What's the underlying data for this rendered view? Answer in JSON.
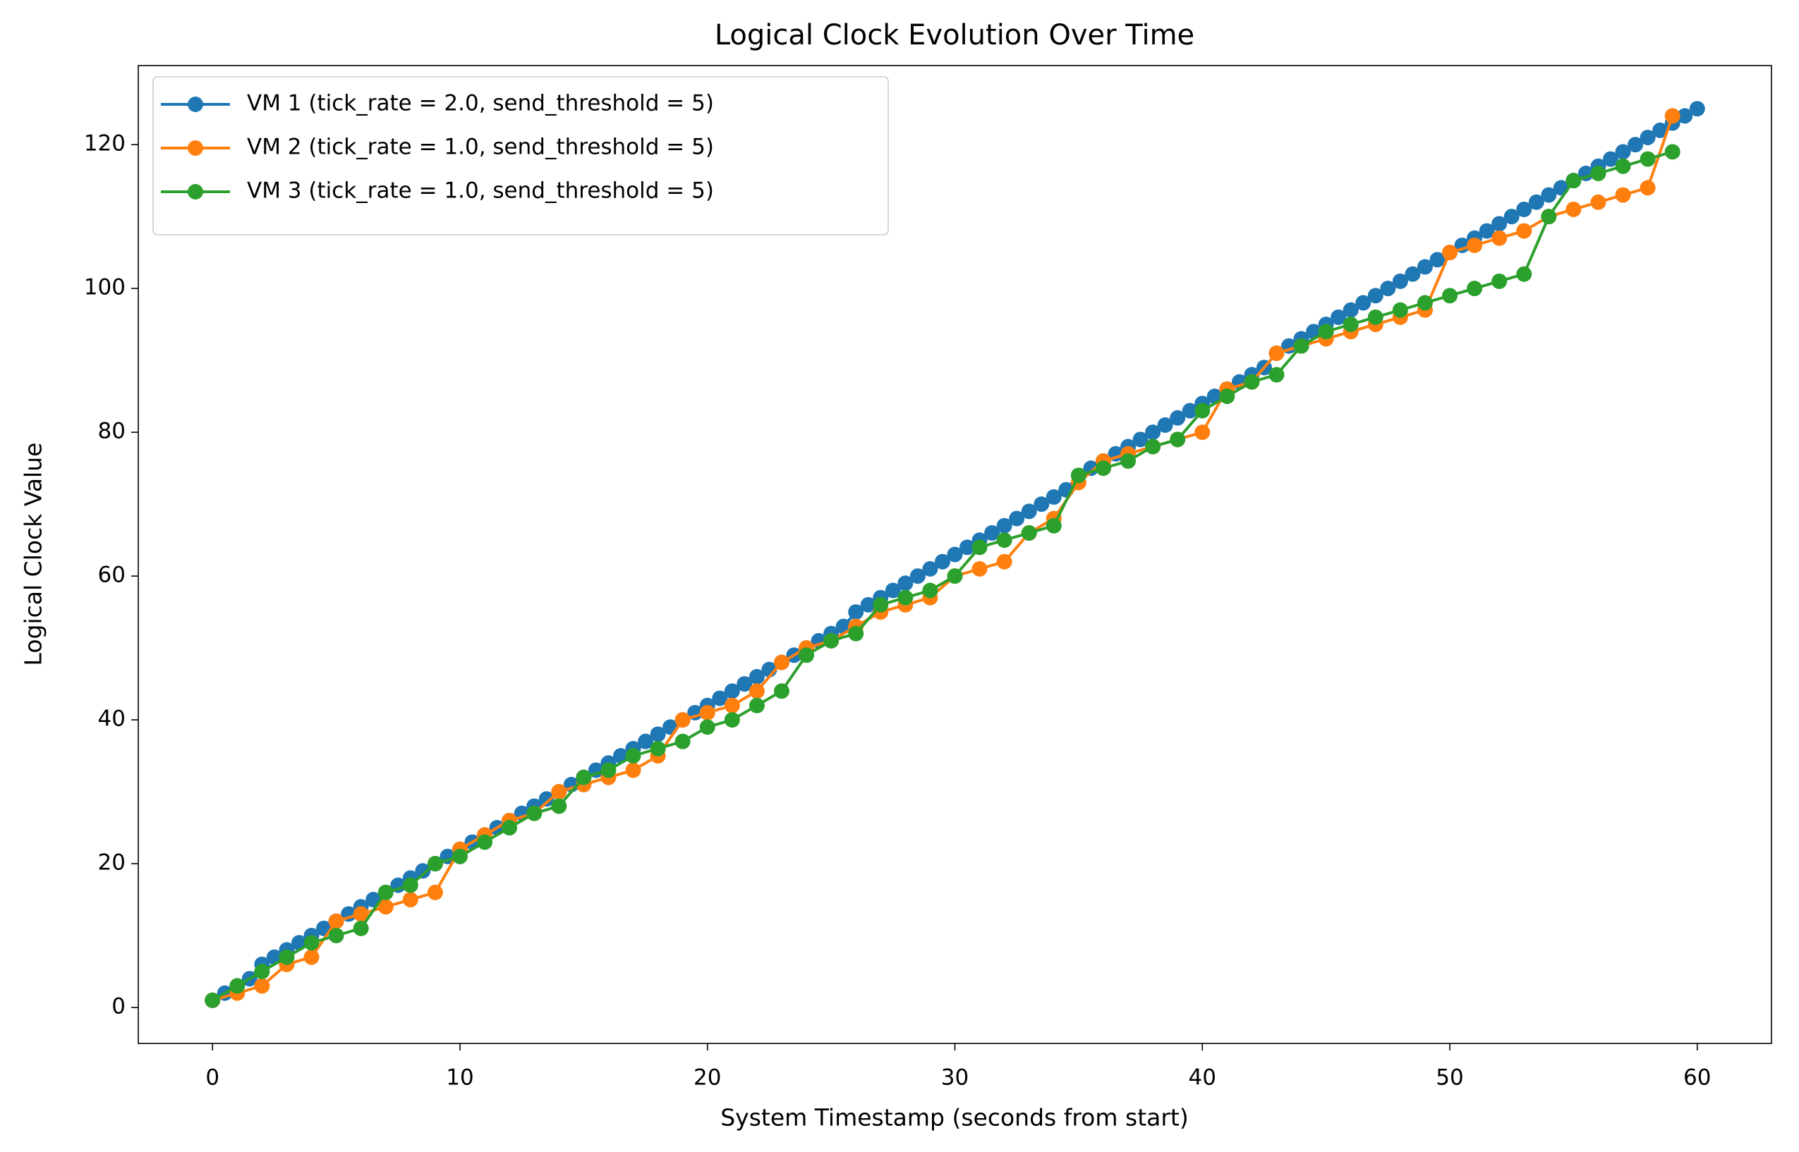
{
  "chart_data": {
    "type": "line",
    "title": "Logical Clock Evolution Over Time",
    "x_label": "System Timestamp (seconds from start)",
    "y_label": "Logical Clock Value",
    "xlim": [
      -3,
      63
    ],
    "ylim": [
      -5,
      131
    ],
    "xticks": [
      0,
      10,
      20,
      30,
      40,
      50,
      60
    ],
    "yticks": [
      0,
      20,
      40,
      60,
      80,
      100,
      120
    ],
    "grid": false,
    "legend": "upper left",
    "marker": "circle",
    "series": [
      {
        "name": "VM 1 (tick_rate = 2.0, send_threshold = 5)",
        "color": "#1f77b4",
        "x": [
          0,
          0.5,
          1,
          1.5,
          2,
          2.5,
          3,
          3.5,
          4,
          4.5,
          5,
          5.5,
          6,
          6.5,
          7,
          7.5,
          8,
          8.5,
          9,
          9.5,
          10,
          10.5,
          11,
          11.5,
          12,
          12.5,
          13,
          13.5,
          14,
          14.5,
          15,
          15.5,
          16,
          16.5,
          17,
          17.5,
          18,
          18.5,
          19,
          19.5,
          20,
          20.5,
          21,
          21.5,
          22,
          22.5,
          23,
          23.5,
          24,
          24.5,
          25,
          25.5,
          26,
          26.5,
          27,
          27.5,
          28,
          28.5,
          29,
          29.5,
          30,
          30.5,
          31,
          31.5,
          32,
          32.5,
          33,
          33.5,
          34,
          34.5,
          35,
          35.5,
          36,
          36.5,
          37,
          37.5,
          38,
          38.5,
          39,
          39.5,
          40,
          40.5,
          41,
          41.5,
          42,
          42.5,
          43,
          43.5,
          44,
          44.5,
          45,
          45.5,
          46,
          46.5,
          47,
          47.5,
          48,
          48.5,
          49,
          49.5,
          50,
          50.5,
          51,
          51.5,
          52,
          52.5,
          53,
          53.5,
          54,
          54.5,
          55,
          55.5,
          56,
          56.5,
          57,
          57.5,
          58,
          58.5,
          59,
          59.5,
          60
        ],
        "values": [
          1,
          2,
          3,
          4,
          6,
          7,
          8,
          9,
          10,
          11,
          12,
          13,
          14,
          15,
          16,
          17,
          18,
          19,
          20,
          21,
          22,
          23,
          24,
          25,
          26,
          27,
          28,
          29,
          30,
          31,
          32,
          33,
          34,
          35,
          36,
          37,
          38,
          39,
          40,
          41,
          42,
          43,
          44,
          45,
          46,
          47,
          48,
          49,
          50,
          51,
          52,
          53,
          55,
          56,
          57,
          58,
          59,
          60,
          61,
          62,
          63,
          64,
          65,
          66,
          67,
          68,
          69,
          70,
          71,
          72,
          74,
          75,
          76,
          77,
          78,
          79,
          80,
          81,
          82,
          83,
          84,
          85,
          86,
          87,
          88,
          89,
          91,
          92,
          93,
          94,
          95,
          96,
          97,
          98,
          99,
          100,
          101,
          102,
          103,
          104,
          105,
          106,
          107,
          108,
          109,
          110,
          111,
          112,
          113,
          114,
          115,
          116,
          117,
          118,
          119,
          120,
          121,
          122,
          123,
          124,
          125
        ]
      },
      {
        "name": "VM 2 (tick_rate = 1.0, send_threshold = 5)",
        "color": "#ff7f0e",
        "x": [
          0,
          1,
          2,
          3,
          4,
          5,
          6,
          7,
          8,
          9,
          10,
          11,
          12,
          13,
          14,
          15,
          16,
          17,
          18,
          19,
          20,
          21,
          22,
          23,
          24,
          25,
          26,
          27,
          28,
          29,
          30,
          31,
          32,
          33,
          34,
          35,
          36,
          37,
          38,
          39,
          40,
          41,
          42,
          43,
          44,
          45,
          46,
          47,
          48,
          49,
          50,
          51,
          52,
          53,
          54,
          55,
          56,
          57,
          58,
          59
        ],
        "values": [
          1,
          2,
          3,
          6,
          7,
          12,
          13,
          14,
          15,
          16,
          22,
          24,
          26,
          27,
          30,
          31,
          32,
          33,
          35,
          40,
          41,
          42,
          44,
          48,
          50,
          51,
          53,
          55,
          56,
          57,
          60,
          61,
          62,
          66,
          68,
          73,
          76,
          77,
          78,
          79,
          80,
          86,
          87,
          91,
          92,
          93,
          94,
          95,
          96,
          97,
          105,
          106,
          107,
          108,
          110,
          111,
          112,
          113,
          114,
          124
        ]
      },
      {
        "name": "VM 3 (tick_rate = 1.0, send_threshold = 5)",
        "color": "#2ca02c",
        "x": [
          0,
          1,
          2,
          3,
          4,
          5,
          6,
          7,
          8,
          9,
          10,
          11,
          12,
          13,
          14,
          15,
          16,
          17,
          18,
          19,
          20,
          21,
          22,
          23,
          24,
          25,
          26,
          27,
          28,
          29,
          30,
          31,
          32,
          33,
          34,
          35,
          36,
          37,
          38,
          39,
          40,
          41,
          42,
          43,
          44,
          45,
          46,
          47,
          48,
          49,
          50,
          51,
          52,
          53,
          54,
          55,
          56,
          57,
          58,
          59
        ],
        "values": [
          1,
          3,
          5,
          7,
          9,
          10,
          11,
          16,
          17,
          20,
          21,
          23,
          25,
          27,
          28,
          32,
          33,
          35,
          36,
          37,
          39,
          40,
          42,
          44,
          49,
          51,
          52,
          56,
          57,
          58,
          60,
          64,
          65,
          66,
          67,
          74,
          75,
          76,
          78,
          79,
          83,
          85,
          87,
          88,
          92,
          94,
          95,
          96,
          97,
          98,
          99,
          100,
          101,
          102,
          110,
          115,
          116,
          117,
          118,
          119
        ]
      }
    ]
  }
}
